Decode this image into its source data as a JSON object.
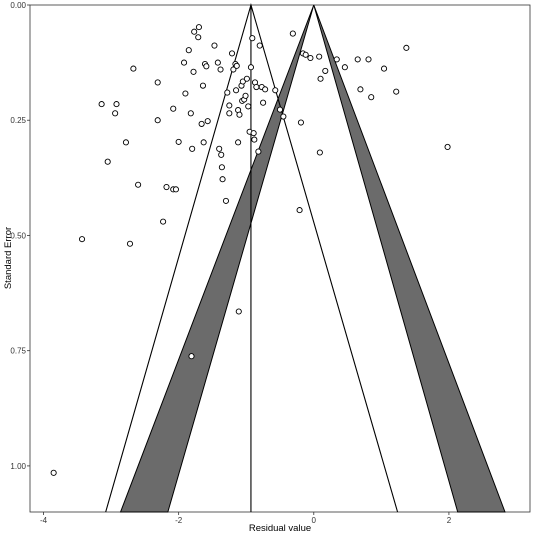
{
  "chart_data": {
    "type": "scatter",
    "title": "",
    "xlabel": "Residual value",
    "ylabel": "Standard Error",
    "xlim": [
      -4.2,
      3.2
    ],
    "ylim": [
      1.1,
      0.0
    ],
    "y_reversed": true,
    "grid": false,
    "x_ticks": [
      -4,
      -2,
      0,
      2
    ],
    "x_tick_labels": [
      "-4",
      "-2",
      "0",
      "2"
    ],
    "y_ticks": [
      0.0,
      0.25,
      0.5,
      0.75,
      1.0
    ],
    "y_tick_labels": [
      "0.00",
      "0.25",
      "0.50",
      "0.75",
      "1.00"
    ],
    "reference_line": {
      "x": -0.93
    },
    "funnel_left": {
      "apex": [
        -0.93,
        0.0
      ],
      "base_left": [
        -3.08,
        1.1
      ],
      "base_right": [
        1.24,
        1.1
      ]
    },
    "funnel_right": {
      "apex": [
        0.0,
        0.0
      ],
      "outer_base_left": [
        -2.86,
        1.1
      ],
      "inner_base_left": [
        -2.16,
        1.1
      ],
      "inner_base_right": [
        2.13,
        1.1
      ],
      "outer_base_right": [
        2.83,
        1.1
      ]
    },
    "points": [
      [
        -3.85,
        1.015
      ],
      [
        -3.43,
        0.508
      ],
      [
        -1.81,
        0.762
      ],
      [
        -1.11,
        0.665
      ],
      [
        -3.14,
        0.215
      ],
      [
        -3.05,
        0.34
      ],
      [
        -2.92,
        0.215
      ],
      [
        -2.94,
        0.235
      ],
      [
        -2.78,
        0.298
      ],
      [
        -2.72,
        0.518
      ],
      [
        -2.67,
        0.138
      ],
      [
        -2.6,
        0.39
      ],
      [
        -2.31,
        0.168
      ],
      [
        -2.31,
        0.25
      ],
      [
        -2.23,
        0.47
      ],
      [
        -2.18,
        0.395
      ],
      [
        -2.08,
        0.4
      ],
      [
        -2.04,
        0.4
      ],
      [
        -2.08,
        0.225
      ],
      [
        -2.0,
        0.297
      ],
      [
        -1.92,
        0.125
      ],
      [
        -1.9,
        0.192
      ],
      [
        -1.85,
        0.098
      ],
      [
        -1.82,
        0.235
      ],
      [
        -1.8,
        0.312
      ],
      [
        -1.78,
        0.145
      ],
      [
        -1.77,
        0.058
      ],
      [
        -1.71,
        0.07
      ],
      [
        -1.7,
        0.048
      ],
      [
        -1.66,
        0.258
      ],
      [
        -1.64,
        0.175
      ],
      [
        -1.63,
        0.298
      ],
      [
        -1.61,
        0.128
      ],
      [
        -1.59,
        0.133
      ],
      [
        -1.57,
        0.252
      ],
      [
        -1.47,
        0.088
      ],
      [
        -1.42,
        0.125
      ],
      [
        -1.4,
        0.312
      ],
      [
        -1.38,
        0.14
      ],
      [
        -1.37,
        0.325
      ],
      [
        -1.36,
        0.352
      ],
      [
        -1.35,
        0.378
      ],
      [
        -1.3,
        0.425
      ],
      [
        -1.28,
        0.19
      ],
      [
        -1.25,
        0.218
      ],
      [
        -1.25,
        0.235
      ],
      [
        -1.21,
        0.105
      ],
      [
        -1.19,
        0.14
      ],
      [
        -1.16,
        0.128
      ],
      [
        -1.15,
        0.185
      ],
      [
        -1.14,
        0.132
      ],
      [
        -1.12,
        0.228
      ],
      [
        -1.12,
        0.298
      ],
      [
        -1.1,
        0.238
      ],
      [
        -1.07,
        0.175
      ],
      [
        -1.06,
        0.208
      ],
      [
        -1.05,
        0.166
      ],
      [
        -1.03,
        0.205
      ],
      [
        -1.01,
        0.197
      ],
      [
        -0.99,
        0.16
      ],
      [
        -0.97,
        0.22
      ],
      [
        -0.95,
        0.275
      ],
      [
        -0.93,
        0.135
      ],
      [
        -0.91,
        0.072
      ],
      [
        -0.89,
        0.278
      ],
      [
        -0.88,
        0.292
      ],
      [
        -0.87,
        0.168
      ],
      [
        -0.85,
        0.178
      ],
      [
        -0.82,
        0.318
      ],
      [
        -0.8,
        0.088
      ],
      [
        -0.77,
        0.178
      ],
      [
        -0.75,
        0.212
      ],
      [
        -0.72,
        0.183
      ],
      [
        -0.57,
        0.185
      ],
      [
        -0.5,
        0.227
      ],
      [
        -0.45,
        0.242
      ],
      [
        -0.31,
        0.062
      ],
      [
        -0.21,
        0.445
      ],
      [
        -0.19,
        0.255
      ],
      [
        -0.16,
        0.105
      ],
      [
        -0.12,
        0.108
      ],
      [
        -0.05,
        0.115
      ],
      [
        0.08,
        0.112
      ],
      [
        0.09,
        0.32
      ],
      [
        0.1,
        0.16
      ],
      [
        0.17,
        0.143
      ],
      [
        0.34,
        0.118
      ],
      [
        0.46,
        0.135
      ],
      [
        0.65,
        0.118
      ],
      [
        0.69,
        0.183
      ],
      [
        0.81,
        0.118
      ],
      [
        0.85,
        0.2
      ],
      [
        1.04,
        0.138
      ],
      [
        1.22,
        0.188
      ],
      [
        1.37,
        0.093
      ],
      [
        1.98,
        0.308
      ]
    ]
  }
}
